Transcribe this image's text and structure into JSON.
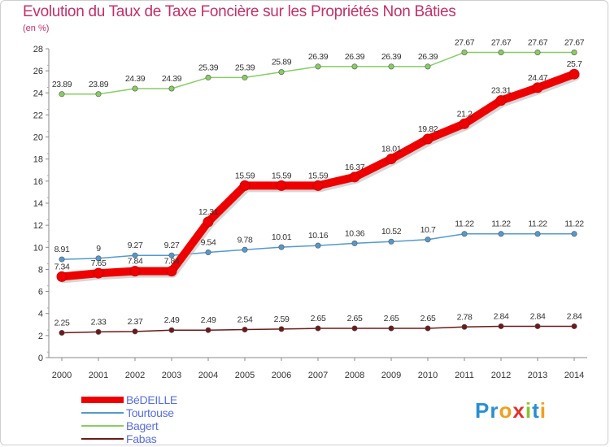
{
  "title": "Evolution du Taux de Taxe Foncière sur les Propriétés Non Bâties",
  "unit": "(en %)",
  "logo": {
    "text": "Proxiti",
    "letters": [
      "P",
      "r",
      "o",
      "x",
      "i",
      "t",
      "i"
    ],
    "colors": [
      "#2a8fd0",
      "#2a8fd0",
      "#f0a020",
      "#e03030",
      "#8ac030",
      "#2a8fd0",
      "#f0a020"
    ]
  },
  "chart_data": {
    "type": "line",
    "title": "Evolution du Taux de Taxe Foncière sur les Propriétés Non Bâties",
    "ylabel": "(en %)",
    "xlabel": "",
    "ylim": [
      0,
      28
    ],
    "yticks": [
      0,
      2,
      4,
      6,
      8,
      10,
      12,
      14,
      16,
      18,
      20,
      22,
      24,
      26,
      28
    ],
    "grid": false,
    "legend": "bottom-left",
    "x": [
      "2000",
      "2001",
      "2002",
      "2003",
      "2004",
      "2005",
      "2006",
      "2007",
      "2008",
      "2009",
      "2010",
      "2011",
      "2012",
      "2013",
      "2014"
    ],
    "series": [
      {
        "name": "BéDEILLE",
        "color": "#ee0000",
        "values": [
          7.34,
          7.65,
          7.84,
          7.84,
          12.31,
          15.59,
          15.59,
          15.59,
          16.37,
          18.01,
          19.82,
          21.2,
          23.31,
          24.47,
          25.7
        ],
        "labels": [
          "7.34",
          "7.65",
          "7.84",
          "7.84",
          "12.31",
          "15.59",
          "15.59",
          "15.59",
          "16.37",
          "18.01",
          "19.82",
          "21.2",
          "23.31",
          "24.47",
          "25.7"
        ]
      },
      {
        "name": "Tourtouse",
        "color": "#5599cc",
        "values": [
          8.91,
          9,
          9.27,
          9.27,
          9.54,
          9.78,
          10.01,
          10.16,
          10.36,
          10.52,
          10.7,
          11.22,
          11.22,
          11.22,
          11.22
        ],
        "labels": [
          "8.91",
          "9",
          "9.27",
          "9.27",
          "9.54",
          "9.78",
          "10.01",
          "10.16",
          "10.36",
          "10.52",
          "10.7",
          "11.22",
          "11.22",
          "11.22",
          "11.22"
        ]
      },
      {
        "name": "Bagert",
        "color": "#88cc66",
        "values": [
          23.89,
          23.89,
          24.39,
          24.39,
          25.39,
          25.39,
          25.89,
          26.39,
          26.39,
          26.39,
          26.39,
          27.67,
          27.67,
          27.67,
          27.67
        ],
        "labels": [
          "23.89",
          "23.89",
          "24.39",
          "24.39",
          "25.39",
          "25.39",
          "25.89",
          "26.39",
          "26.39",
          "26.39",
          "26.39",
          "27.67",
          "27.67",
          "27.67",
          "27.67"
        ]
      },
      {
        "name": "Fabas",
        "color": "#6b1a1a",
        "values": [
          2.25,
          2.33,
          2.37,
          2.49,
          2.49,
          2.54,
          2.59,
          2.65,
          2.65,
          2.65,
          2.65,
          2.78,
          2.84,
          2.84,
          2.84
        ],
        "labels": [
          "2.25",
          "2.33",
          "2.37",
          "2.49",
          "2.49",
          "2.54",
          "2.59",
          "2.65",
          "2.65",
          "2.65",
          "2.65",
          "2.78",
          "2.84",
          "2.84",
          "2.84"
        ]
      }
    ]
  }
}
